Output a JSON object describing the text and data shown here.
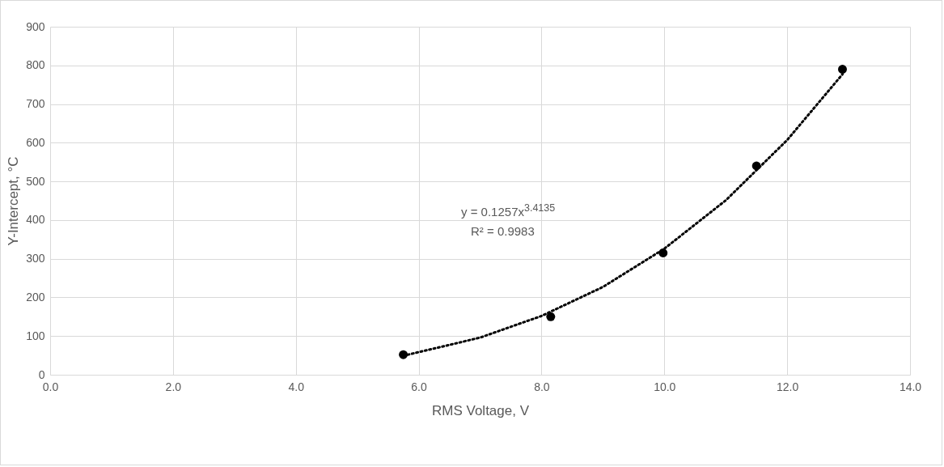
{
  "chart_data": {
    "type": "scatter",
    "xlabel": "RMS Voltage, V",
    "ylabel": "Y-Intercept, °C",
    "xlim": [
      0,
      14
    ],
    "xticks": [
      {
        "value": 0,
        "label": "0.0"
      },
      {
        "value": 2,
        "label": "2.0"
      },
      {
        "value": 4,
        "label": "4.0"
      },
      {
        "value": 6,
        "label": "6.0"
      },
      {
        "value": 8,
        "label": "8.0"
      },
      {
        "value": 10,
        "label": "10.0"
      },
      {
        "value": 12,
        "label": "12.0"
      },
      {
        "value": 14,
        "label": "14.0"
      }
    ],
    "ylim": [
      0,
      900
    ],
    "yticks": [
      0,
      100,
      200,
      300,
      400,
      500,
      600,
      700,
      800,
      900
    ],
    "grid": true,
    "series": [
      {
        "type": "scatter",
        "color": "#000000",
        "marker": "circle",
        "x": [
          5.75,
          8.15,
          9.98,
          11.5,
          12.9
        ],
        "values": [
          52,
          150,
          315,
          540,
          790
        ]
      },
      {
        "type": "line",
        "color": "#000000",
        "line_style": "dotted",
        "marker": "none",
        "x": [
          5.75,
          7,
          8,
          9,
          10,
          11,
          12,
          12.9
        ],
        "values": [
          49,
          96,
          152,
          227,
          326,
          451,
          607,
          777
        ]
      }
    ],
    "annotations": [
      "y = 0.1257x$^{3.4135}$",
      "R² = 0.9983"
    ]
  }
}
